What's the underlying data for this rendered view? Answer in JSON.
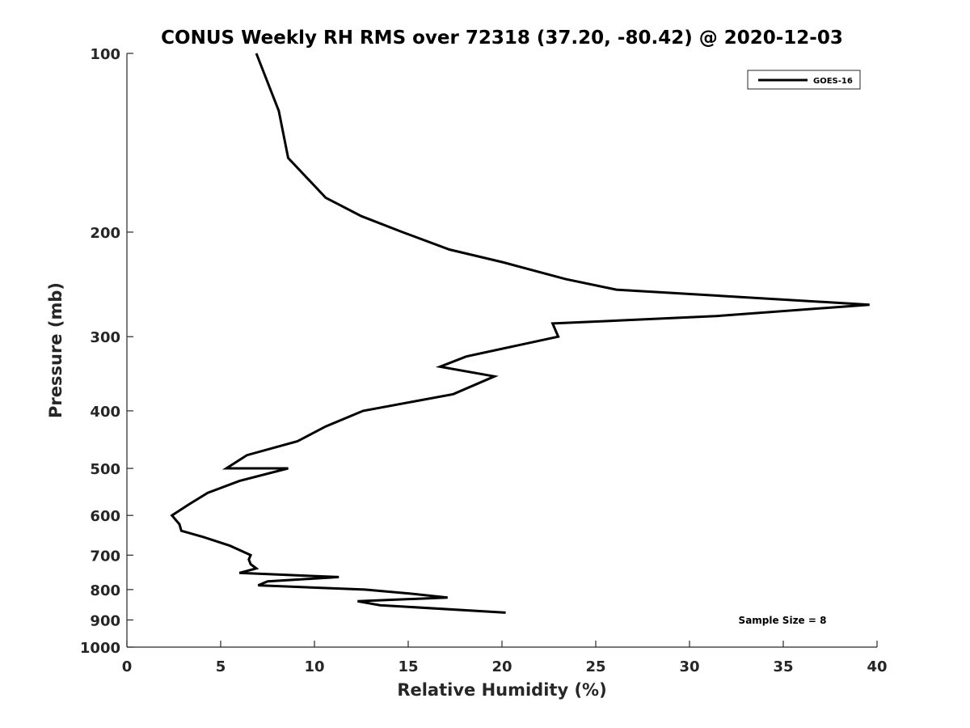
{
  "chart_data": {
    "type": "line",
    "title": "CONUS Weekly RH RMS over 72318 (37.20, -80.42) @ 2020-12-03",
    "xlabel": "Relative Humidity (%)",
    "ylabel": "Pressure (mb)",
    "xlim": [
      0,
      40
    ],
    "ylim": [
      100,
      1000
    ],
    "y_scale": "log",
    "y_reversed": true,
    "x_ticks": [
      "0",
      "5",
      "10",
      "15",
      "20",
      "25",
      "30",
      "35",
      "40"
    ],
    "y_ticks": [
      "100",
      "200",
      "300",
      "400",
      "500",
      "600",
      "700",
      "800",
      "900",
      "1000"
    ],
    "grid": false,
    "legend_position": "top-right",
    "annotation": "Sample Size = 8",
    "series": [
      {
        "name": "GOES-16",
        "color": "#000000",
        "points": [
          [
            6.9,
            100
          ],
          [
            8.1,
            125
          ],
          [
            8.6,
            150
          ],
          [
            10.6,
            175
          ],
          [
            12.5,
            188
          ],
          [
            14.7,
            200
          ],
          [
            17.2,
            214
          ],
          [
            20.1,
            225
          ],
          [
            23.4,
            240
          ],
          [
            26.1,
            250
          ],
          [
            39.6,
            265
          ],
          [
            31.4,
            277
          ],
          [
            22.7,
            285
          ],
          [
            23.0,
            300
          ],
          [
            20.7,
            311
          ],
          [
            18.1,
            324
          ],
          [
            16.7,
            337
          ],
          [
            19.6,
            350
          ],
          [
            17.4,
            375
          ],
          [
            12.6,
            400
          ],
          [
            10.6,
            425
          ],
          [
            9.1,
            450
          ],
          [
            6.4,
            475
          ],
          [
            5.3,
            500
          ],
          [
            8.6,
            500
          ],
          [
            6.0,
            525
          ],
          [
            4.3,
            550
          ],
          [
            3.3,
            575
          ],
          [
            2.4,
            600
          ],
          [
            2.8,
            621
          ],
          [
            2.9,
            637
          ],
          [
            4.1,
            653
          ],
          [
            5.5,
            675
          ],
          [
            6.6,
            700
          ],
          [
            6.5,
            712
          ],
          [
            6.6,
            725
          ],
          [
            6.9,
            737
          ],
          [
            6.0,
            750
          ],
          [
            11.3,
            762
          ],
          [
            7.5,
            775
          ],
          [
            7.0,
            787
          ],
          [
            12.7,
            800
          ],
          [
            15.0,
            812
          ],
          [
            17.1,
            825
          ],
          [
            12.3,
            837
          ],
          [
            13.5,
            850
          ],
          [
            20.2,
            875
          ]
        ]
      }
    ]
  }
}
